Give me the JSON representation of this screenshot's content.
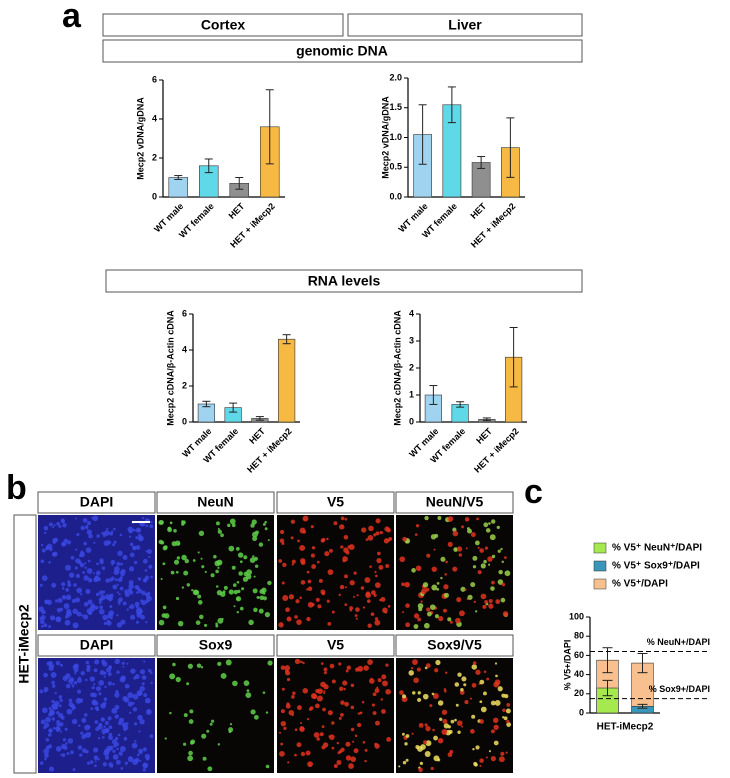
{
  "figure": {
    "panel_labels": [
      "a",
      "b",
      "c"
    ],
    "tissues": [
      "Cortex",
      "Liver"
    ],
    "sections": [
      "genomic DNA",
      "RNA levels"
    ],
    "micrograph_row_label": "HET-iMecp2",
    "micrograph_titles": [
      [
        "DAPI",
        "NeuN",
        "V5",
        "NeuN/V5"
      ],
      [
        "DAPI",
        "Sox9",
        "V5",
        "Sox9/V5"
      ]
    ]
  },
  "chart_data": [
    {
      "type": "bar",
      "ylabel": "Mecp2 vDNA/gDNA",
      "categories": [
        "WT male",
        "WT female",
        "HET",
        "HET + iMecp2"
      ],
      "values": [
        1.0,
        1.6,
        0.7,
        3.6
      ],
      "errors": [
        0.1,
        0.35,
        0.3,
        1.9
      ],
      "colors": [
        "#9fd3f0",
        "#5fd8e8",
        "#8f8f8f",
        "#f6b944"
      ],
      "ylim": [
        0,
        6
      ],
      "yticks": [
        0,
        2,
        4,
        6
      ]
    },
    {
      "type": "bar",
      "ylabel": "Mecp2 vDNA/gDNA",
      "categories": [
        "WT male",
        "WT female",
        "HET",
        "HET + iMecp2"
      ],
      "values": [
        1.05,
        1.55,
        0.58,
        0.83
      ],
      "errors": [
        0.5,
        0.3,
        0.1,
        0.5
      ],
      "colors": [
        "#9fd3f0",
        "#5fd8e8",
        "#8f8f8f",
        "#f6b944"
      ],
      "ylim": [
        0,
        2
      ],
      "yticks": [
        {
          "value": 0,
          "label": "0.0"
        },
        0.5,
        {
          "value": 1,
          "label": "1.0"
        },
        1.5,
        {
          "value": 2,
          "label": "2.0"
        }
      ]
    },
    {
      "type": "bar",
      "ylabel": "Mecp2 cDNA/β-Actin cDNA",
      "categories": [
        "WT male",
        "WT female",
        "HET",
        "HET + iMecp2"
      ],
      "values": [
        1.0,
        0.8,
        0.2,
        4.6
      ],
      "errors": [
        0.15,
        0.25,
        0.1,
        0.25
      ],
      "colors": [
        "#9fd3f0",
        "#5fd8e8",
        "#8f8f8f",
        "#f6b944"
      ],
      "ylim": [
        0,
        6
      ],
      "yticks": [
        0,
        2,
        4,
        6
      ]
    },
    {
      "type": "bar",
      "ylabel": "Mecp2 cDNA/β-Actin cDNA",
      "categories": [
        "WT male",
        "WT female",
        "HET",
        "HET + iMecp2"
      ],
      "values": [
        1.0,
        0.65,
        0.1,
        2.4
      ],
      "errors": [
        0.35,
        0.1,
        0.05,
        1.1
      ],
      "colors": [
        "#9fd3f0",
        "#5fd8e8",
        "#8f8f8f",
        "#f6b944"
      ],
      "ylim": [
        0,
        4
      ],
      "yticks": [
        0,
        1,
        2,
        3,
        4
      ]
    },
    {
      "type": "bar",
      "ylabel": "% V5+/DAPI",
      "xlabel": "HET-iMecp2",
      "categories": [
        null,
        null
      ],
      "series": [
        {
          "name": "% V5⁺ NeuN⁺/DAPI",
          "color": "#a6e94f",
          "values": [
            26,
            null
          ],
          "errors": [
            8,
            null
          ]
        },
        {
          "name": "% V5⁺ Sox9⁺/DAPI",
          "color": "#3a96b8",
          "values": [
            null,
            7
          ],
          "errors": [
            null,
            2
          ]
        },
        {
          "name": "% V5⁺/DAPI",
          "color": "#f7c08e",
          "values": [
            55,
            52
          ],
          "errors": [
            13,
            10
          ]
        }
      ],
      "reference_lines": [
        {
          "value": 64,
          "label": "% NeuN+/DAPI"
        },
        {
          "value": 15,
          "label": "% Sox9+/DAPI"
        }
      ],
      "ylim": [
        0,
        100
      ],
      "yticks": [
        0,
        20,
        40,
        60,
        80,
        100
      ]
    }
  ]
}
